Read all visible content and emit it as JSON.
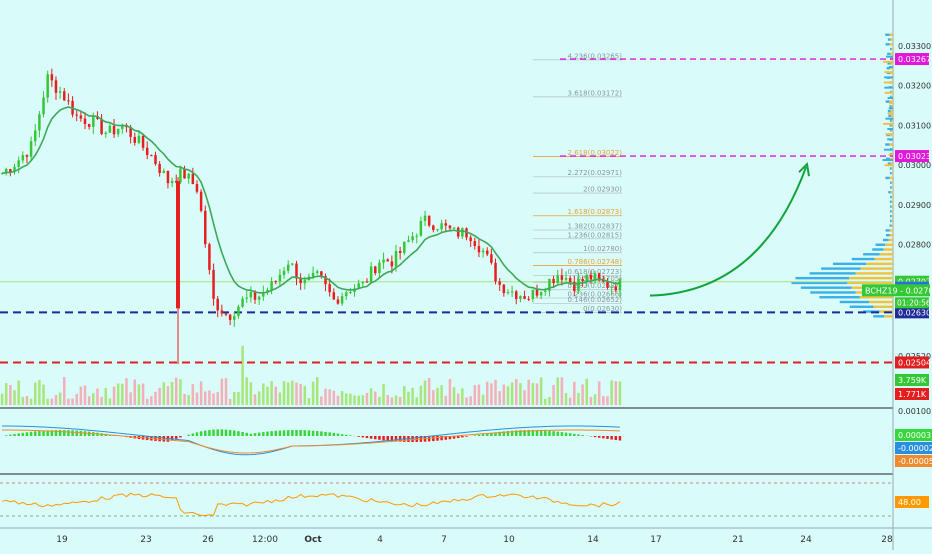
{
  "colors": {
    "background": "#d9fbf9",
    "up": "#35c735",
    "down": "#e61e1e",
    "ema": "#3fa85b",
    "fib_line": "#b9c9c9",
    "fib_text": "#8a9a9a",
    "fib_gold": "#e8a33c",
    "target_magenta": "#e018d8",
    "support_navy": "#1f2a9c",
    "support_red": "#e02020",
    "arrow_green": "#13a33a",
    "macd_line": "#2a8fe0",
    "signal_line": "#f08a2a",
    "rsi_line": "#ff9900",
    "volume_up": "#a8e67a",
    "volume_down": "#f4b0b8",
    "vp_blue": "#3ab0e8",
    "vp_gold": "#f2c23c"
  },
  "chart_data": [
    {
      "type": "candlestick",
      "symbol": "BCHZ19",
      "last_price": "0.02703",
      "countdown": "01:20:56",
      "x_tick_labels": [
        "19",
        "23",
        "26",
        "12:00",
        "Oct",
        "4",
        "7",
        "10",
        "14",
        "17",
        "21",
        "24",
        "28"
      ],
      "y_tick_labels": [
        "0.03300",
        "0.03200",
        "0.03100",
        "0.03000",
        "0.02900",
        "0.02800",
        "0.02520"
      ],
      "y_tick_values": [
        0.033,
        0.032,
        0.031,
        0.03,
        0.029,
        0.028,
        0.0252
      ],
      "ylim": [
        0.0248,
        0.0334
      ],
      "price_tags": [
        {
          "label": "0.03267",
          "value": 0.03267,
          "color": "#e018d8"
        },
        {
          "label": "0.03023",
          "value": 0.03023,
          "color": "#e018d8"
        },
        {
          "label": "0.02707",
          "value": 0.02707,
          "color": "#35c735"
        },
        {
          "label": "0.02692",
          "value": 0.02692,
          "color": "#2a6fe0"
        },
        {
          "label": "0.02630",
          "value": 0.0263,
          "color": "#1f2a9c"
        },
        {
          "label": "0.02504",
          "value": 0.02504,
          "color": "#e02020"
        }
      ],
      "fibonacci": [
        {
          "label": "4.236(0.03265)",
          "value": 0.03265,
          "gold": false
        },
        {
          "label": "3.618(0.03172)",
          "value": 0.03172,
          "gold": false
        },
        {
          "label": "2.618(0.03022)",
          "value": 0.03022,
          "gold": true
        },
        {
          "label": "2.272(0.02971)",
          "value": 0.02971,
          "gold": false
        },
        {
          "label": "2(0.02930)",
          "value": 0.0293,
          "gold": false
        },
        {
          "label": "1.618(0.02873)",
          "value": 0.02873,
          "gold": true
        },
        {
          "label": "1.382(0.02837)",
          "value": 0.02837,
          "gold": false
        },
        {
          "label": "1.236(0.02815)",
          "value": 0.02815,
          "gold": false
        },
        {
          "label": "1(0.02780)",
          "value": 0.0278,
          "gold": false
        },
        {
          "label": "0.786(0.02748)",
          "value": 0.02748,
          "gold": true
        },
        {
          "label": "0.618(0.02723)",
          "value": 0.02723,
          "gold": false
        },
        {
          "label": "0.5(0.02705)",
          "value": 0.02705,
          "gold": false
        },
        {
          "label": "0.382(0.02687)",
          "value": 0.02687,
          "gold": false
        },
        {
          "label": "0.236(0.02666)",
          "value": 0.02666,
          "gold": false
        },
        {
          "label": "0.146(0.02652)",
          "value": 0.02652,
          "gold": false
        },
        {
          "label": "0(0.02630)",
          "value": 0.0263,
          "gold": false
        }
      ],
      "target_levels": [
        0.03267,
        0.03023
      ],
      "support_levels": [
        {
          "value": 0.0263,
          "color": "#1f2a9c"
        },
        {
          "value": 0.02504,
          "color": "#e02020"
        }
      ],
      "ohlc_anchor_closes": [
        0.0298,
        0.0301,
        0.0305,
        0.0322,
        0.0318,
        0.0312,
        0.0311,
        0.0308,
        0.031,
        0.0306,
        0.0302,
        0.0296,
        0.0298,
        0.0294,
        0.0266,
        0.0262,
        0.0266,
        0.0267,
        0.027,
        0.0276,
        0.027,
        0.0272,
        0.0266,
        0.0269,
        0.027,
        0.0276,
        0.0276,
        0.0281,
        0.0286,
        0.0285,
        0.0283,
        0.0283,
        0.0278,
        0.027,
        0.0268,
        0.0267,
        0.027,
        0.0273,
        0.027,
        0.0272,
        0.027,
        0.027
      ],
      "volume_labels": [
        "3.759K",
        "1.771K"
      ]
    },
    {
      "type": "line",
      "name": "MACD",
      "y_tick_labels": [
        "0.00100"
      ],
      "values_labels": [
        "0.00003",
        "-0.00002",
        "-0.00005"
      ]
    },
    {
      "type": "line",
      "name": "RSI",
      "value_label": "48.00",
      "bands": [
        70,
        30
      ]
    }
  ]
}
